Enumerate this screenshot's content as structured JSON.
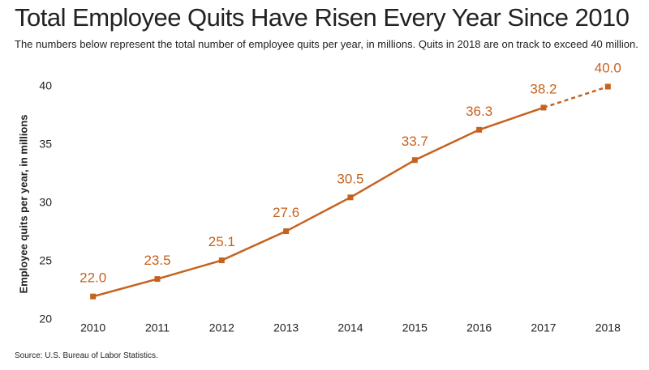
{
  "chart_data": {
    "type": "line",
    "title": "Total Employee Quits Have Risen Every Year Since 2010",
    "subtitle": "The numbers below represent the total number of employee quits per year, in millions. Quits in 2018 are on track to exceed 40 million.",
    "y_label": "Employee quits per year, in millions",
    "source": "Source: U.S. Bureau of Labor Statistics.",
    "x": [
      2010,
      2011,
      2012,
      2013,
      2014,
      2015,
      2016,
      2017,
      2018
    ],
    "series": [
      {
        "color": "#c5621f",
        "values": [
          22.0,
          23.5,
          25.1,
          27.6,
          30.5,
          33.7,
          36.3,
          38.2,
          null
        ],
        "value_labels": [
          "22.0",
          "23.5",
          "25.1",
          "27.6",
          "30.5",
          "33.7",
          "36.3",
          "38.2",
          null
        ]
      },
      {
        "color": "#c5621f",
        "dashed": true,
        "values": [
          null,
          null,
          null,
          null,
          null,
          null,
          null,
          38.2,
          40.0
        ],
        "value_labels": [
          null,
          null,
          null,
          null,
          null,
          null,
          null,
          null,
          "40.0"
        ]
      }
    ],
    "xlim": [
      2009.5,
      2018.45
    ],
    "xticks": [
      2010,
      2011,
      2012,
      2013,
      2014,
      2015,
      2016,
      2017,
      2018
    ],
    "ylim": [
      20,
      40
    ],
    "yticks": [
      20,
      25,
      30,
      35,
      40
    ],
    "grid": false
  }
}
